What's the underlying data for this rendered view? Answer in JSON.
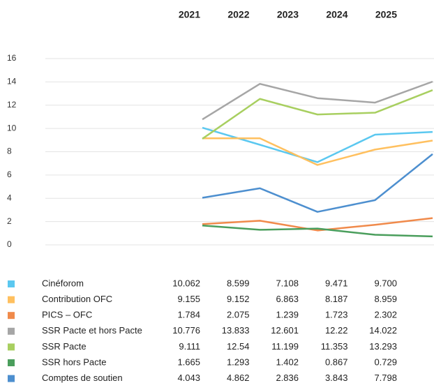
{
  "chart_data": {
    "type": "line",
    "categories": [
      "2021",
      "2022",
      "2023",
      "2024",
      "2025"
    ],
    "ylim": [
      0,
      16
    ],
    "yticks": [
      0,
      2,
      4,
      6,
      8,
      10,
      12,
      14,
      16
    ],
    "grid": true,
    "series": [
      {
        "name": "Cinéforom",
        "color": "#5bc8f0",
        "values": [
          10.062,
          8.599,
          7.108,
          9.471,
          9.7
        ],
        "value_labels": [
          "10.062",
          "8.599",
          "7.108",
          "9.471",
          "9.700"
        ]
      },
      {
        "name": "Contribution OFC",
        "color": "#ffc05f",
        "values": [
          9.155,
          9.152,
          6.863,
          8.187,
          8.959
        ]
      },
      {
        "name": "PICS – OFC",
        "color": "#f08a4b",
        "values": [
          1.784,
          2.075,
          1.239,
          1.723,
          2.302
        ]
      },
      {
        "name": "SSR Pacte et hors Pacte",
        "color": "#a6a6a6",
        "values": [
          10.776,
          13.833,
          12.601,
          12.22,
          14.022
        ]
      },
      {
        "name": "SSR Pacte",
        "color": "#a8cf60",
        "values": [
          9.111,
          12.54,
          11.199,
          11.353,
          13.293
        ]
      },
      {
        "name": "SSR hors Pacte",
        "color": "#4a9e5c",
        "values": [
          1.665,
          1.293,
          1.402,
          0.867,
          0.729
        ]
      },
      {
        "name": "Comptes de soutien",
        "color": "#4d8fcf",
        "values": [
          4.043,
          4.862,
          2.836,
          3.843,
          7.798
        ]
      }
    ]
  }
}
